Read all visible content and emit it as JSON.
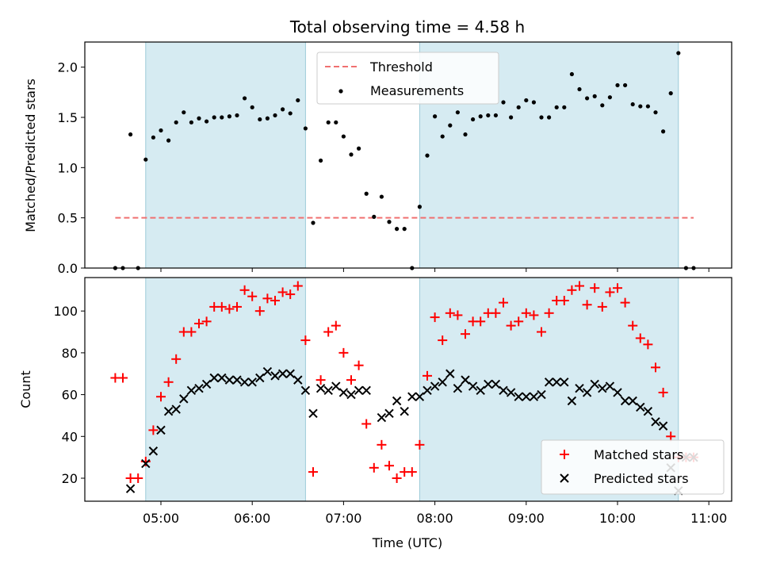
{
  "chart_data": [
    {
      "type": "scatter",
      "title": "Total observing time = 4.58 h",
      "ylabel": "Matched/Predicted stars",
      "ylim": [
        0,
        2.25
      ],
      "yticks": [
        "0.0",
        "0.5",
        "1.0",
        "1.5",
        "2.0"
      ],
      "shaded_intervals": [
        [
          "04:50",
          "06:35"
        ],
        [
          "07:50",
          "10:40"
        ]
      ],
      "threshold": {
        "name": "Threshold",
        "value": 0.5,
        "x_start": "04:30",
        "x_end": "10:50",
        "color": "#f07070"
      },
      "measurements": {
        "name": "Measurements",
        "color": "#000000",
        "x": [
          "04:30",
          "04:35",
          "04:40",
          "04:45",
          "04:50",
          "04:55",
          "05:00",
          "05:05",
          "05:10",
          "05:15",
          "05:20",
          "05:25",
          "05:30",
          "05:35",
          "05:40",
          "05:45",
          "05:50",
          "05:55",
          "06:00",
          "06:05",
          "06:10",
          "06:15",
          "06:20",
          "06:25",
          "06:30",
          "06:35",
          "06:40",
          "06:45",
          "06:50",
          "06:55",
          "07:00",
          "07:05",
          "07:10",
          "07:15",
          "07:20",
          "07:25",
          "07:30",
          "07:35",
          "07:40",
          "07:45",
          "07:50",
          "07:55",
          "08:00",
          "08:05",
          "08:10",
          "08:15",
          "08:20",
          "08:25",
          "08:30",
          "08:35",
          "08:40",
          "08:45",
          "08:50",
          "08:55",
          "09:00",
          "09:05",
          "09:10",
          "09:15",
          "09:20",
          "09:25",
          "09:30",
          "09:35",
          "09:40",
          "09:45",
          "09:50",
          "09:55",
          "10:00",
          "10:05",
          "10:10",
          "10:15",
          "10:20",
          "10:25",
          "10:30",
          "10:35",
          "10:40",
          "10:45",
          "10:50"
        ],
        "y": [
          0,
          0,
          1.33,
          0,
          1.08,
          1.3,
          1.37,
          1.27,
          1.45,
          1.55,
          1.45,
          1.49,
          1.46,
          1.5,
          1.5,
          1.51,
          1.52,
          1.69,
          1.6,
          1.48,
          1.49,
          1.52,
          1.58,
          1.54,
          1.67,
          1.39,
          0.45,
          1.07,
          1.45,
          1.45,
          1.31,
          1.13,
          1.19,
          0.74,
          0.51,
          0.71,
          0.46,
          0.39,
          0.39,
          0,
          0.61,
          1.12,
          1.51,
          1.31,
          1.42,
          1.55,
          1.33,
          1.48,
          1.51,
          1.52,
          1.52,
          1.65,
          1.5,
          1.6,
          1.67,
          1.65,
          1.5,
          1.5,
          1.6,
          1.6,
          1.93,
          1.78,
          1.69,
          1.71,
          1.62,
          1.7,
          1.82,
          1.82,
          1.63,
          1.61,
          1.61,
          1.55,
          1.36,
          1.74,
          2.14,
          0,
          0
        ]
      }
    },
    {
      "type": "scatter",
      "xlabel": "Time (UTC)",
      "ylabel": "Count",
      "ylim": [
        9,
        116
      ],
      "yticks": [
        "20",
        "40",
        "60",
        "80",
        "100"
      ],
      "xlim": [
        "04:10",
        "11:15"
      ],
      "xticks": [
        "05:00",
        "06:00",
        "07:00",
        "08:00",
        "09:00",
        "10:00",
        "11:00"
      ],
      "shaded_intervals": [
        [
          "04:50",
          "06:35"
        ],
        [
          "07:50",
          "10:40"
        ]
      ],
      "series": [
        {
          "name": "Matched stars",
          "marker": "+",
          "color": "#ff0000",
          "x": [
            "04:30",
            "04:35",
            "04:40",
            "04:45",
            "04:50",
            "04:55",
            "05:00",
            "05:05",
            "05:10",
            "05:15",
            "05:20",
            "05:25",
            "05:30",
            "05:35",
            "05:40",
            "05:45",
            "05:50",
            "05:55",
            "06:00",
            "06:05",
            "06:10",
            "06:15",
            "06:20",
            "06:25",
            "06:30",
            "06:35",
            "06:40",
            "06:45",
            "06:50",
            "06:55",
            "07:00",
            "07:05",
            "07:10",
            "07:15",
            "07:20",
            "07:25",
            "07:30",
            "07:35",
            "07:40",
            "07:45",
            "07:50",
            "07:55",
            "08:00",
            "08:05",
            "08:10",
            "08:15",
            "08:20",
            "08:25",
            "08:30",
            "08:35",
            "08:40",
            "08:45",
            "08:50",
            "08:55",
            "09:00",
            "09:05",
            "09:10",
            "09:15",
            "09:20",
            "09:25",
            "09:30",
            "09:35",
            "09:40",
            "09:45",
            "09:50",
            "09:55",
            "10:00",
            "10:05",
            "10:10",
            "10:15",
            "10:20",
            "10:25",
            "10:30",
            "10:35",
            "10:40",
            "10:45",
            "10:50"
          ],
          "y": [
            68,
            68,
            20,
            20,
            28,
            43,
            59,
            66,
            77,
            90,
            90,
            94,
            95,
            102,
            102,
            101,
            102,
            110,
            107,
            100,
            106,
            105,
            109,
            108,
            112,
            86,
            23,
            67,
            90,
            93,
            80,
            67,
            74,
            46,
            25,
            36,
            26,
            20,
            23,
            23,
            36,
            69,
            97,
            86,
            99,
            98,
            89,
            95,
            95,
            99,
            99,
            104,
            93,
            95,
            99,
            98,
            90,
            99,
            105,
            105,
            110,
            112,
            103,
            111,
            102,
            109,
            111,
            104,
            93,
            87,
            84,
            73,
            61,
            40,
            30,
            30,
            30
          ]
        },
        {
          "name": "Predicted stars",
          "marker": "x",
          "color": "#000000",
          "x": [
            "04:40",
            "04:50",
            "04:55",
            "05:00",
            "05:05",
            "05:10",
            "05:15",
            "05:20",
            "05:25",
            "05:30",
            "05:35",
            "05:40",
            "05:45",
            "05:50",
            "05:55",
            "06:00",
            "06:05",
            "06:10",
            "06:15",
            "06:20",
            "06:25",
            "06:30",
            "06:35",
            "06:40",
            "06:45",
            "06:50",
            "06:55",
            "07:00",
            "07:05",
            "07:10",
            "07:15",
            "07:25",
            "07:30",
            "07:35",
            "07:40",
            "07:45",
            "07:50",
            "07:55",
            "08:00",
            "08:05",
            "08:10",
            "08:15",
            "08:20",
            "08:25",
            "08:30",
            "08:35",
            "08:40",
            "08:45",
            "08:50",
            "08:55",
            "09:00",
            "09:05",
            "09:10",
            "09:15",
            "09:20",
            "09:25",
            "09:30",
            "09:35",
            "09:40",
            "09:45",
            "09:50",
            "09:55",
            "10:00",
            "10:05",
            "10:10",
            "10:15",
            "10:20",
            "10:25",
            "10:30",
            "10:35",
            "10:40",
            "10:45",
            "10:50"
          ],
          "y": [
            15,
            27,
            33,
            43,
            52,
            53,
            58,
            62,
            63,
            65,
            68,
            68,
            67,
            67,
            66,
            66,
            68,
            71,
            69,
            70,
            70,
            67,
            62,
            51,
            63,
            62,
            64,
            61,
            60,
            62,
            62,
            49,
            51,
            57,
            52,
            59,
            59,
            62,
            64,
            66,
            70,
            63,
            67,
            64,
            62,
            65,
            65,
            62,
            61,
            59,
            59,
            59,
            60,
            66,
            66,
            66,
            57,
            63,
            61,
            65,
            63,
            64,
            61,
            57,
            57,
            54,
            52,
            47,
            45,
            25,
            14,
            30,
            30
          ]
        }
      ],
      "legend": "lower-right"
    }
  ],
  "colors": {
    "shade": "#add8e6",
    "shade_alpha": 0.5
  }
}
